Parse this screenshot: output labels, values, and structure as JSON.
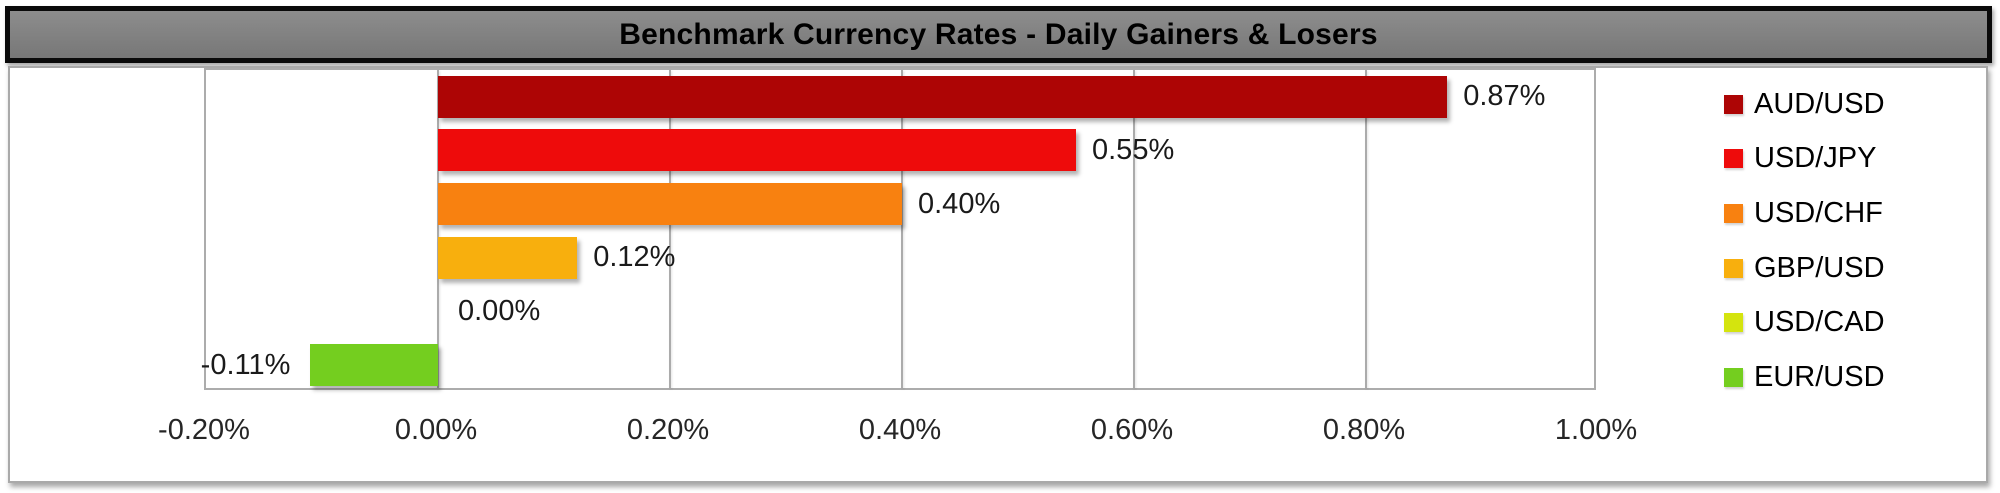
{
  "title_bar": {
    "background": "#7f7f7f",
    "border_color": "#000000",
    "text_color": "#000000"
  },
  "chart_data": {
    "type": "bar",
    "orientation": "horizontal",
    "title": "Benchmark Currency Rates - Daily Gainers & Losers",
    "categories": [
      "AUD/USD",
      "USD/JPY",
      "USD/CHF",
      "GBP/USD",
      "USD/CAD",
      "EUR/USD"
    ],
    "series": [
      {
        "name": "AUD/USD",
        "value": 0.87,
        "data_label": "0.87%",
        "color": "#ad0505"
      },
      {
        "name": "USD/JPY",
        "value": 0.55,
        "data_label": "0.55%",
        "color": "#ee0b0b"
      },
      {
        "name": "USD/CHF",
        "value": 0.4,
        "data_label": "0.40%",
        "color": "#f88110"
      },
      {
        "name": "GBP/USD",
        "value": 0.12,
        "data_label": "0.12%",
        "color": "#f8af0d"
      },
      {
        "name": "USD/CAD",
        "value": 0.0,
        "data_label": "0.00%",
        "color": "#d4e40e"
      },
      {
        "name": "EUR/USD",
        "value": -0.11,
        "data_label": "-0.11%",
        "color": "#74ce1f"
      }
    ],
    "xlabel": "",
    "ylabel": "",
    "xlim": [
      -0.2,
      1.0
    ],
    "x_ticks": [
      {
        "value": -0.2,
        "label": "-0.20%"
      },
      {
        "value": 0.0,
        "label": "0.00%"
      },
      {
        "value": 0.2,
        "label": "0.20%"
      },
      {
        "value": 0.4,
        "label": "0.40%"
      },
      {
        "value": 0.6,
        "label": "0.60%"
      },
      {
        "value": 0.8,
        "label": "0.80%"
      },
      {
        "value": 1.0,
        "label": "1.00%"
      }
    ],
    "grid": true,
    "data_labels_shown": true,
    "legend_position": "right",
    "colors": {
      "gridline": "#ababab",
      "axis_text": "#262626",
      "value_label_text": "#1a1a1a"
    }
  }
}
